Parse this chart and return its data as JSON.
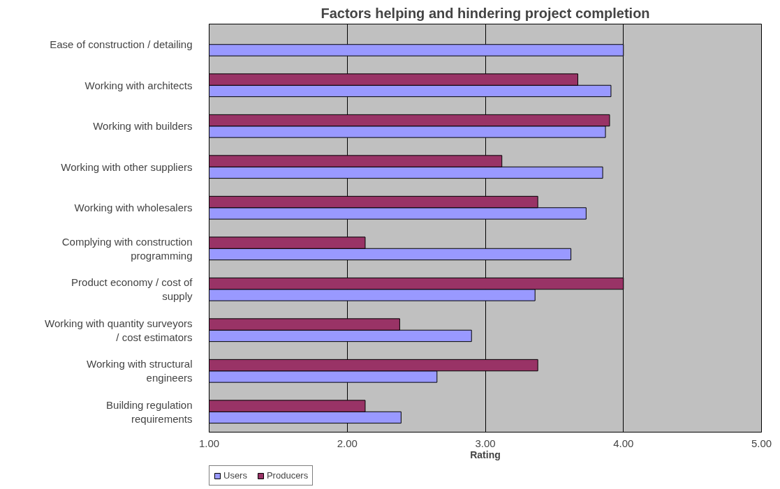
{
  "chart_data": {
    "type": "bar",
    "orientation": "horizontal",
    "title": "Factors helping and hindering project completion",
    "xlabel": "Rating",
    "categories": [
      "Ease of construction / detailing",
      "Working with architects",
      "Working with builders",
      "Working with other suppliers",
      "Working with wholesalers",
      "Complying with construction programming",
      "Product economy / cost of supply",
      "Working with quantity surveyors / cost estimators",
      "Working with structural engineers",
      "Building regulation requirements"
    ],
    "series": [
      {
        "name": "Users",
        "color": "#9999ff",
        "values": [
          4.0,
          3.91,
          3.87,
          3.85,
          3.73,
          3.62,
          3.36,
          2.9,
          2.65,
          2.39
        ]
      },
      {
        "name": "Producers",
        "color": "#993366",
        "values": [
          null,
          3.67,
          3.9,
          3.12,
          3.38,
          2.13,
          4.0,
          2.38,
          3.38,
          2.13
        ]
      }
    ],
    "xlim": [
      1,
      5
    ],
    "xticks": [
      {
        "value": 1,
        "label": "1.00"
      },
      {
        "value": 2,
        "label": "2.00"
      },
      {
        "value": 3,
        "label": "3.00"
      },
      {
        "value": 4,
        "label": "4.00"
      },
      {
        "value": 5,
        "label": "5.00"
      }
    ],
    "grid": "x",
    "legend": "bottom left"
  }
}
